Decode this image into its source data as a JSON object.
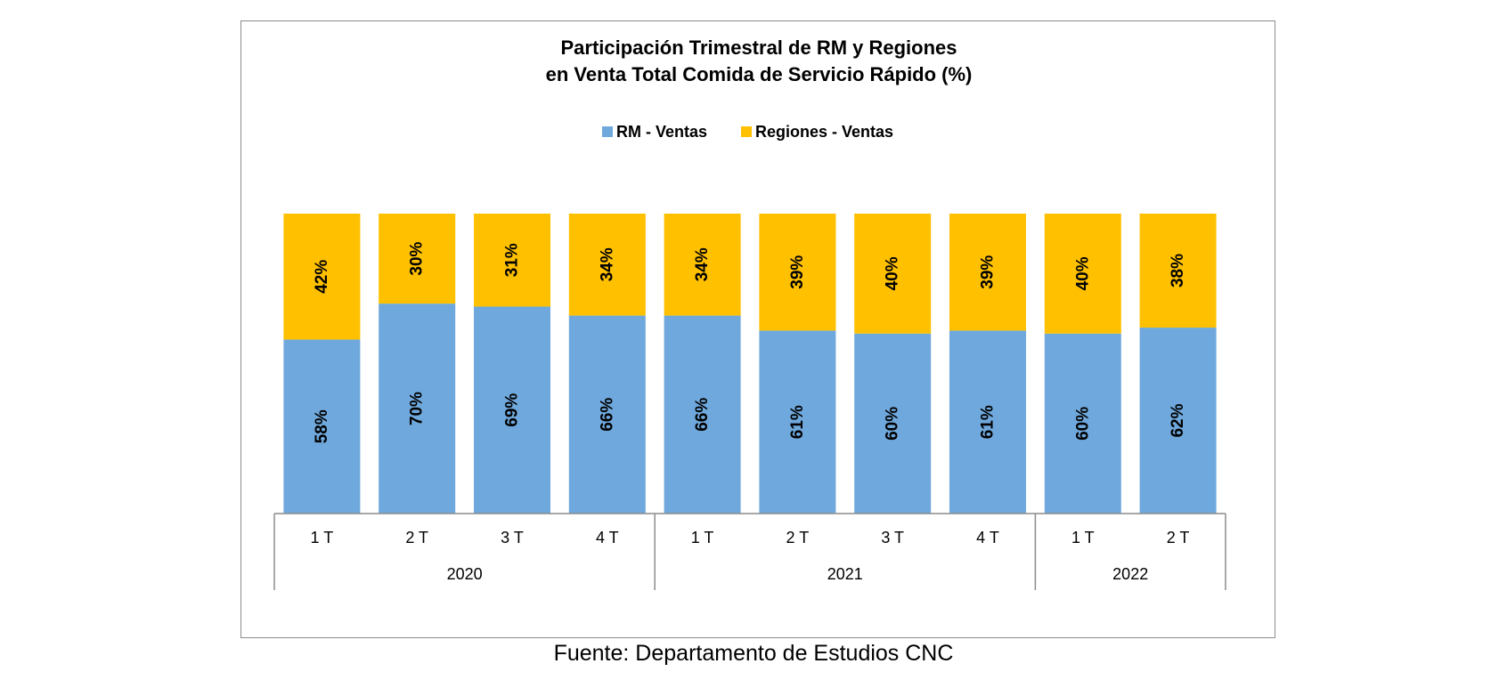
{
  "chart_data": {
    "type": "bar",
    "stacked": true,
    "title": [
      "Participación Trimestral de RM y Regiones",
      "en Venta Total Comida de Servicio Rápido (%)"
    ],
    "categories": [
      "1 T",
      "2 T",
      "3 T",
      "4 T",
      "1 T",
      "2 T",
      "3 T",
      "4 T",
      "1 T",
      "2 T"
    ],
    "groups": [
      {
        "label": "2020",
        "count": 4
      },
      {
        "label": "2021",
        "count": 4
      },
      {
        "label": "2022",
        "count": 2
      }
    ],
    "series": [
      {
        "name": "RM - Ventas",
        "color": "#6fa8dc",
        "values": [
          58,
          70,
          69,
          66,
          66,
          61,
          60,
          61,
          60,
          62
        ],
        "labels": [
          "58%",
          "70%",
          "69%",
          "66%",
          "66%",
          "61%",
          "60%",
          "61%",
          "60%",
          "62%"
        ]
      },
      {
        "name": "Regiones - Ventas",
        "color": "#ffc000",
        "values": [
          42,
          30,
          31,
          34,
          34,
          39,
          40,
          39,
          40,
          38
        ],
        "labels": [
          "42%",
          "30%",
          "31%",
          "34%",
          "34%",
          "39%",
          "40%",
          "39%",
          "40%",
          "38%"
        ]
      }
    ],
    "ylim": [
      0,
      100
    ],
    "grid": false,
    "legend_position": "top"
  },
  "source": "Fuente: Departamento de Estudios CNC"
}
